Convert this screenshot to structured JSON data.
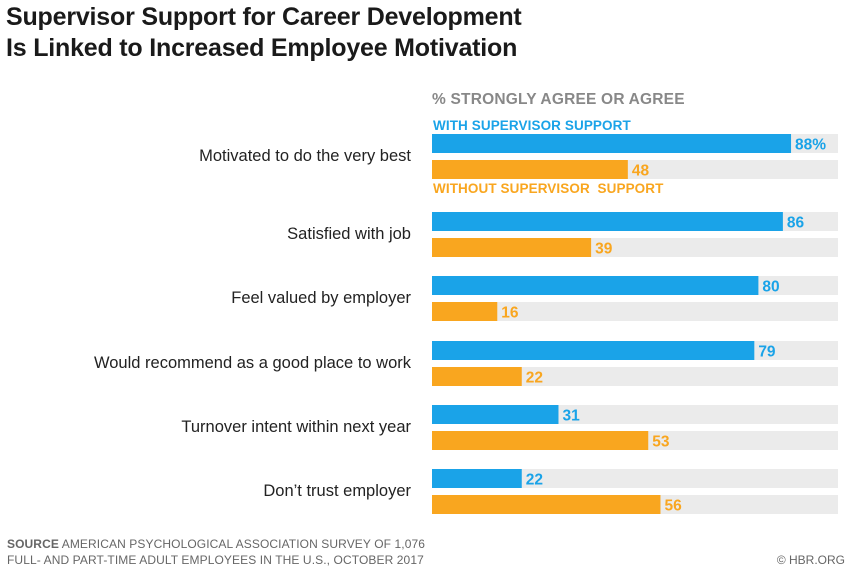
{
  "title_lines": [
    "Supervisor Support for Career Development",
    "Is Linked to Increased Employee Motivation"
  ],
  "source_key": "SOURCE",
  "source_line1": "AMERICAN PSYCHOLOGICAL ASSOCIATION SURVEY OF 1,076",
  "source_line2": "FULL- AND PART-TIME ADULT EMPLOYEES IN THE U.S., OCTOBER 2017",
  "credit": "© HBR.ORG",
  "colors": {
    "with": "#1aa3e8",
    "without": "#f9a61f",
    "track": "#ebebeb"
  },
  "chart_data": {
    "type": "bar",
    "orientation": "horizontal",
    "subtitle": "% STRONGLY AGREE OR AGREE",
    "categories": [
      "Motivated to do the very best",
      "Satisfied with job",
      "Feel valued by employer",
      "Would recommend as a good place to work",
      "Turnover intent within next year",
      "Don’t trust employer"
    ],
    "series": [
      {
        "name": "WITH SUPERVISOR SUPPORT",
        "values": [
          88,
          86,
          80,
          79,
          31,
          22
        ],
        "labels": [
          "88%",
          "86",
          "80",
          "79",
          "31",
          "22"
        ]
      },
      {
        "name": "WITHOUT SUPERVISOR  SUPPORT",
        "values": [
          48,
          39,
          16,
          22,
          53,
          56
        ],
        "labels": [
          "48",
          "39",
          "16",
          "22",
          "53",
          "56"
        ]
      }
    ],
    "xlim": [
      0,
      100
    ]
  }
}
